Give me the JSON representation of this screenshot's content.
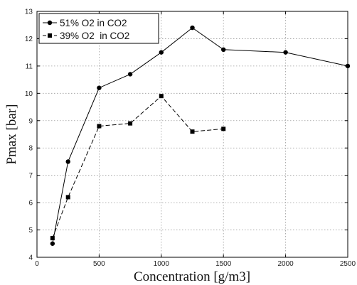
{
  "chart_data": {
    "type": "line",
    "xlabel": "Concentration [g/m3]",
    "ylabel": "Pmax [bar]",
    "xlim": [
      0,
      2500
    ],
    "ylim": [
      4,
      13
    ],
    "xticks": [
      0,
      500,
      1000,
      1500,
      2000,
      2500
    ],
    "yticks": [
      4,
      5,
      6,
      7,
      8,
      9,
      10,
      11,
      12,
      13
    ],
    "grid": true,
    "legend_position": "top-left",
    "series": [
      {
        "name": "51% O2 in CO2",
        "marker": "circle",
        "line_style": "solid",
        "color": "#000000",
        "x": [
          125,
          250,
          500,
          750,
          1000,
          1250,
          1500,
          2000,
          2500
        ],
        "y": [
          4.5,
          7.5,
          10.2,
          10.7,
          11.5,
          12.4,
          11.6,
          11.5,
          11.0
        ]
      },
      {
        "name": "39% O2  in CO2",
        "marker": "square",
        "line_style": "dashed",
        "color": "#000000",
        "x": [
          125,
          250,
          500,
          750,
          1000,
          1250,
          1500
        ],
        "y": [
          4.7,
          6.2,
          8.8,
          8.9,
          9.9,
          8.6,
          8.7
        ]
      }
    ]
  }
}
